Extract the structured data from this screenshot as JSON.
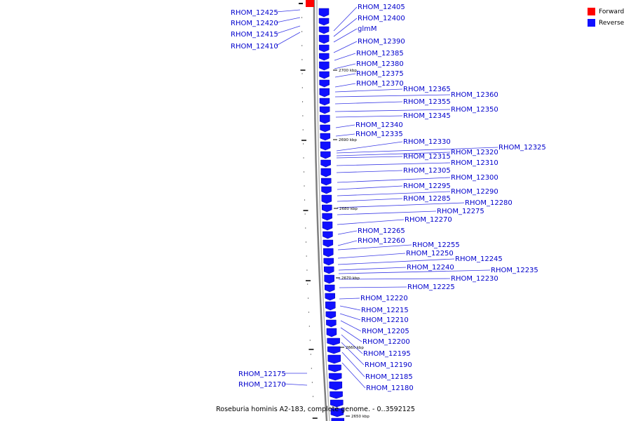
{
  "caption": "Roseburia hominis A2-183, complete genome. - 0..3592125",
  "legend": {
    "forward_label": "Forward",
    "forward_color": "#ff0000",
    "reverse_label": "Reverse",
    "reverse_color": "#1010ff"
  },
  "colors": {
    "label": "#0000cc",
    "leader": "#3a3ae6",
    "backbone": "#808080"
  },
  "ruler_labels": [
    "2700 kbp",
    "2690 kbp",
    "2680 kbp",
    "2670 kbp",
    "2660 kbp",
    "2650 kbp"
  ],
  "left_labels": [
    "RHOM_12425",
    "RHOM_12420",
    "RHOM_12415",
    "RHOM_12410",
    "RHOM_12175",
    "RHOM_12170"
  ],
  "right_labels": [
    "RHOM_12405",
    "RHOM_12400",
    "glmM",
    "RHOM_12390",
    "RHOM_12385",
    "RHOM_12380",
    "RHOM_12375",
    "RHOM_12370",
    "RHOM_12365",
    "RHOM_12360",
    "RHOM_12355",
    "RHOM_12350",
    "RHOM_12345",
    "RHOM_12340",
    "RHOM_12335",
    "RHOM_12330",
    "RHOM_12325",
    "RHOM_12320",
    "RHOM_12315",
    "RHOM_12310",
    "RHOM_12305",
    "RHOM_12300",
    "RHOM_12295",
    "RHOM_12290",
    "RHOM_12285",
    "RHOM_12280",
    "RHOM_12275",
    "RHOM_12270",
    "RHOM_12265",
    "RHOM_12260",
    "RHOM_12255",
    "RHOM_12250",
    "RHOM_12245",
    "RHOM_12240",
    "RHOM_12235",
    "RHOM_12230",
    "RHOM_12225",
    "RHOM_12220",
    "RHOM_12215",
    "RHOM_12210",
    "RHOM_12205",
    "RHOM_12200",
    "RHOM_12195",
    "RHOM_12190",
    "RHOM_12185",
    "RHOM_12180"
  ]
}
